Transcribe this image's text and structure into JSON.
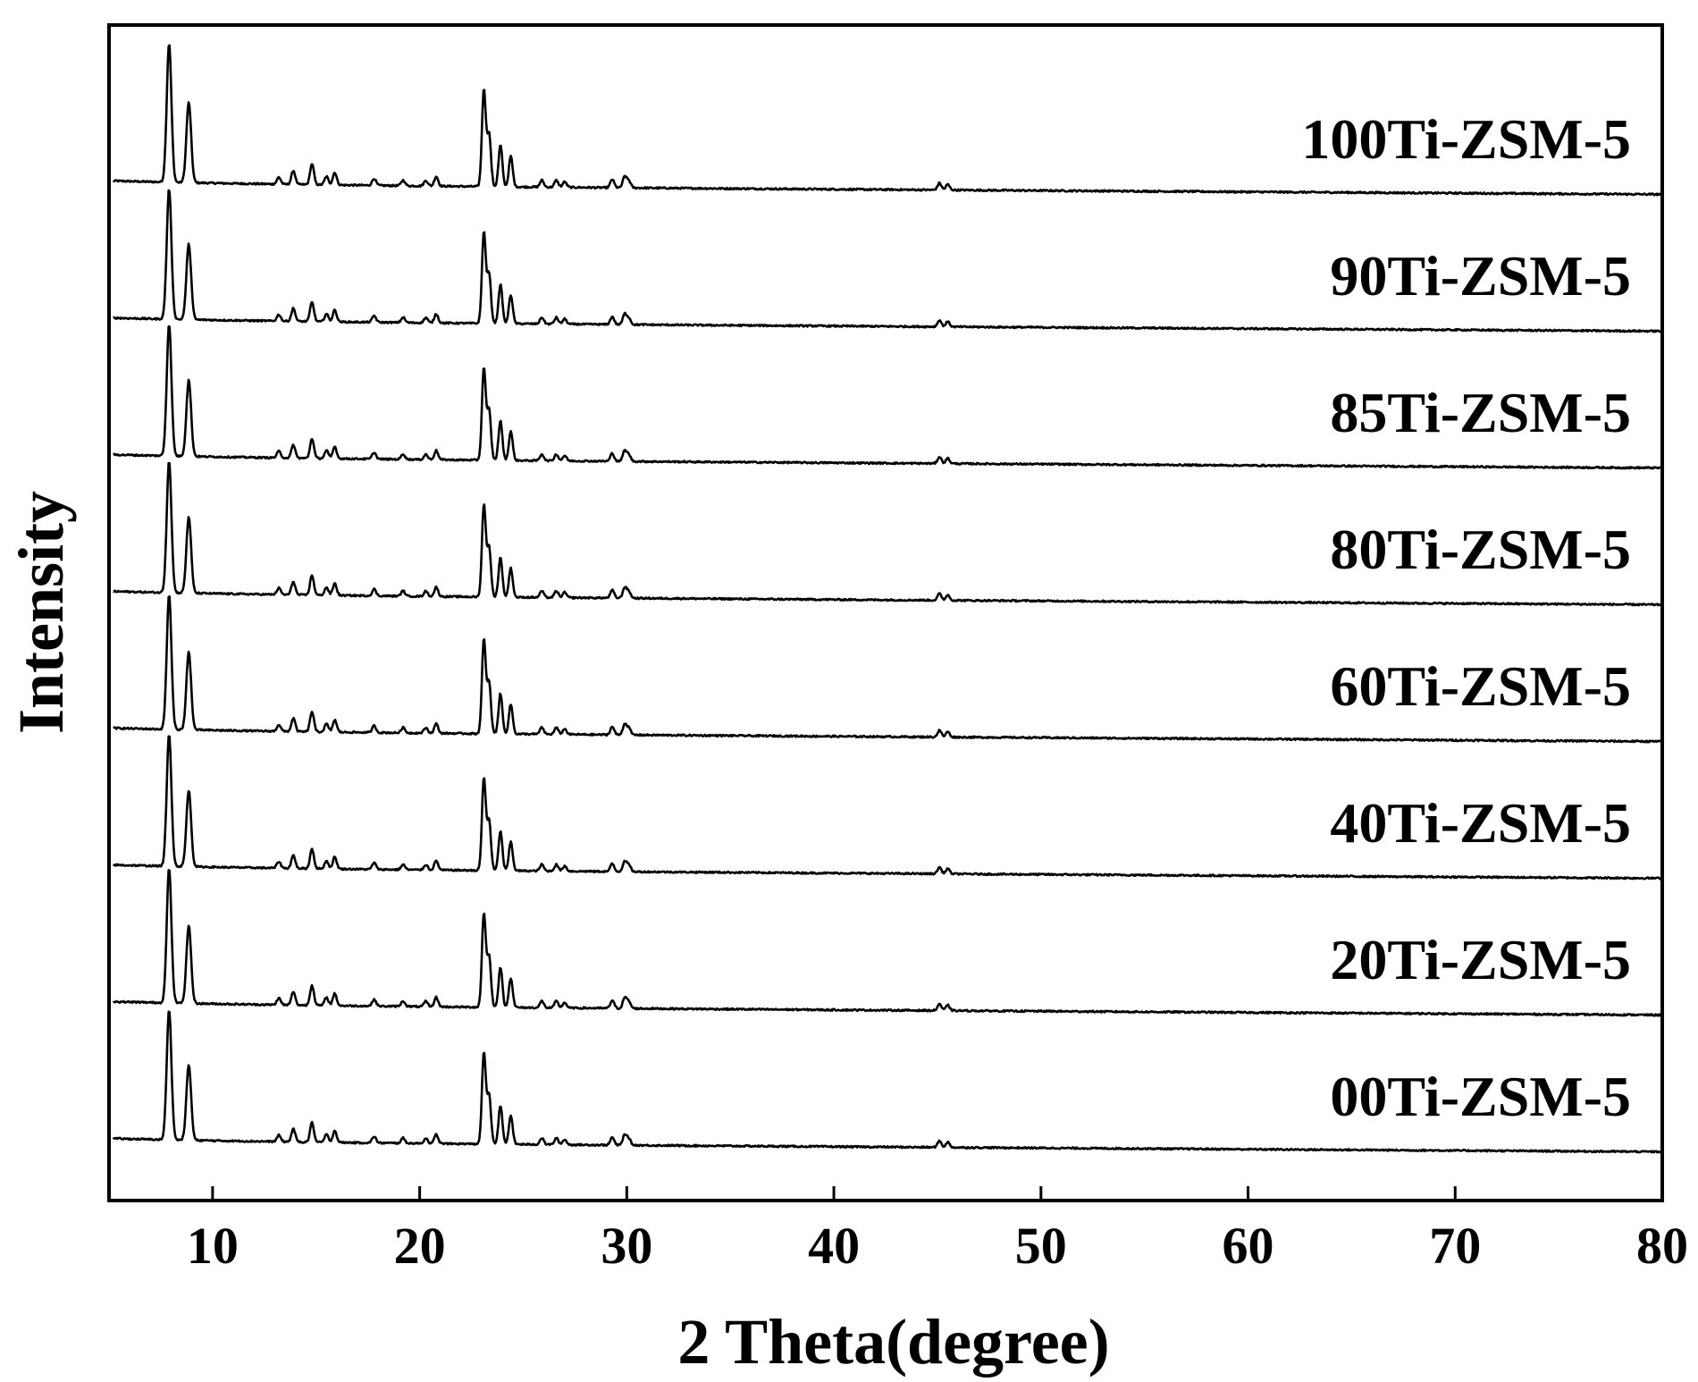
{
  "chart_data": {
    "type": "line",
    "title": "",
    "xlabel": "2 Theta(degree)",
    "ylabel": "Intensity",
    "xlim": [
      5,
      80
    ],
    "xticks": [
      10,
      20,
      30,
      40,
      50,
      60,
      70,
      80
    ],
    "yticks_shown": false,
    "grid": false,
    "legend": "none (series labels placed at right of each stacked trace)",
    "stacking": "vertically offset, evenly spaced",
    "peaks_2theta": [
      [
        7.9,
        1.0
      ],
      [
        8.85,
        0.58
      ],
      [
        13.2,
        0.05
      ],
      [
        13.9,
        0.1
      ],
      [
        14.8,
        0.15
      ],
      [
        15.5,
        0.06
      ],
      [
        15.9,
        0.09
      ],
      [
        17.8,
        0.05
      ],
      [
        19.2,
        0.04
      ],
      [
        20.3,
        0.04
      ],
      [
        20.8,
        0.07
      ],
      [
        23.1,
        0.7
      ],
      [
        23.35,
        0.38
      ],
      [
        23.9,
        0.3
      ],
      [
        24.4,
        0.22
      ],
      [
        25.9,
        0.05
      ],
      [
        26.6,
        0.05
      ],
      [
        27.0,
        0.04
      ],
      [
        29.3,
        0.06
      ],
      [
        29.9,
        0.08
      ],
      [
        30.1,
        0.05
      ],
      [
        45.1,
        0.05
      ],
      [
        45.5,
        0.04
      ]
    ],
    "series": [
      {
        "name": "100Ti-ZSM-5",
        "relative_intensity": 1.0
      },
      {
        "name": "90Ti-ZSM-5",
        "relative_intensity": 0.94
      },
      {
        "name": "85Ti-ZSM-5",
        "relative_intensity": 0.95
      },
      {
        "name": "80Ti-ZSM-5",
        "relative_intensity": 0.95
      },
      {
        "name": "60Ti-ZSM-5",
        "relative_intensity": 0.97
      },
      {
        "name": "40Ti-ZSM-5",
        "relative_intensity": 0.95
      },
      {
        "name": "20Ti-ZSM-5",
        "relative_intensity": 0.97
      },
      {
        "name": "00Ti-ZSM-5",
        "relative_intensity": 0.94
      }
    ]
  }
}
